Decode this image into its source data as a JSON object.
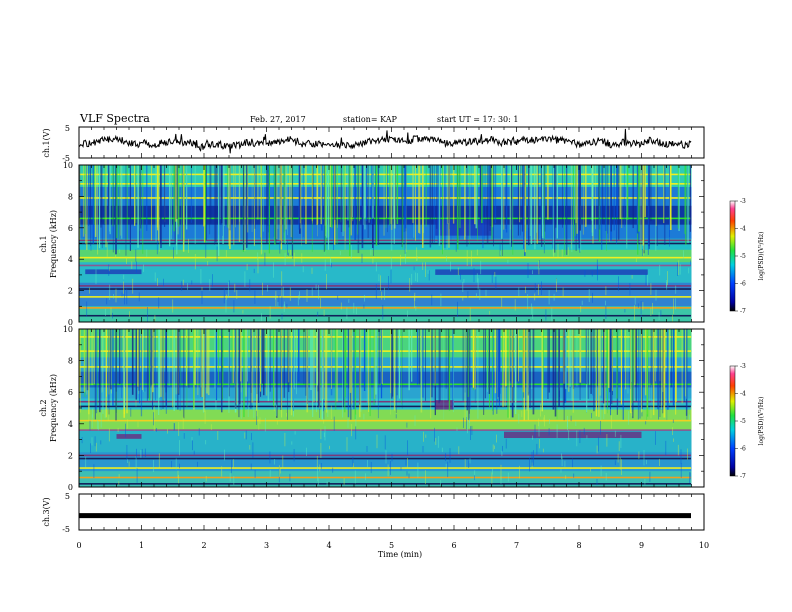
{
  "header": {
    "title": "VLF Spectra",
    "date": "Feb. 27, 2017",
    "station": "station= KAP",
    "start": "start  UT =  17: 30: 1"
  },
  "colors": {
    "spectrogram_base": "#19b4c8",
    "band_dark": "#10205a",
    "band_yellow": "#f0f020",
    "band_purple": "#7a3a78",
    "waveform": "#000000"
  },
  "chart_data": [
    {
      "type": "line",
      "panel": "ch1-waveform",
      "ylabel": "ch.1(V)",
      "ylim": [
        -5,
        5
      ],
      "yticks": [
        5,
        -5
      ],
      "xlim": [
        0,
        10
      ]
    },
    {
      "type": "heatmap",
      "panel": "ch1-spectrogram",
      "ylabel_top": "ch.1",
      "ylabel": "Frequency (kHz)",
      "ylim": [
        0,
        10
      ],
      "yticks": [
        0,
        2,
        4,
        6,
        8,
        10
      ],
      "xlim": [
        0,
        10
      ],
      "colorbar": {
        "label": "log(PSD)(V²/Hz)",
        "ticks": [
          "-3",
          "-4",
          "-5",
          "-6",
          "-7"
        ],
        "range": [
          -7,
          -3
        ]
      }
    },
    {
      "type": "heatmap",
      "panel": "ch2-spectrogram",
      "ylabel_top": "ch.2",
      "ylabel": "Frequency (kHz)",
      "ylim": [
        0,
        10
      ],
      "yticks": [
        0,
        2,
        4,
        6,
        8,
        10
      ],
      "xlim": [
        0,
        10
      ],
      "colorbar": {
        "label": "log(PSD)(V²/Hz)",
        "ticks": [
          "-3",
          "-4",
          "-5",
          "-6",
          "-7"
        ],
        "range": [
          -7,
          -3
        ]
      }
    },
    {
      "type": "line",
      "panel": "ch3-waveform",
      "ylabel": "ch.3(V)",
      "ylim": [
        -5,
        5
      ],
      "yticks": [
        5,
        -5
      ],
      "xlim": [
        0,
        10
      ],
      "values_note": "flat line at approximately -1 V",
      "level": -1
    }
  ],
  "xaxis": {
    "label": "Time (min)",
    "ticks": [
      "0",
      "1",
      "2",
      "3",
      "4",
      "5",
      "6",
      "7",
      "8",
      "9",
      "10"
    ]
  }
}
